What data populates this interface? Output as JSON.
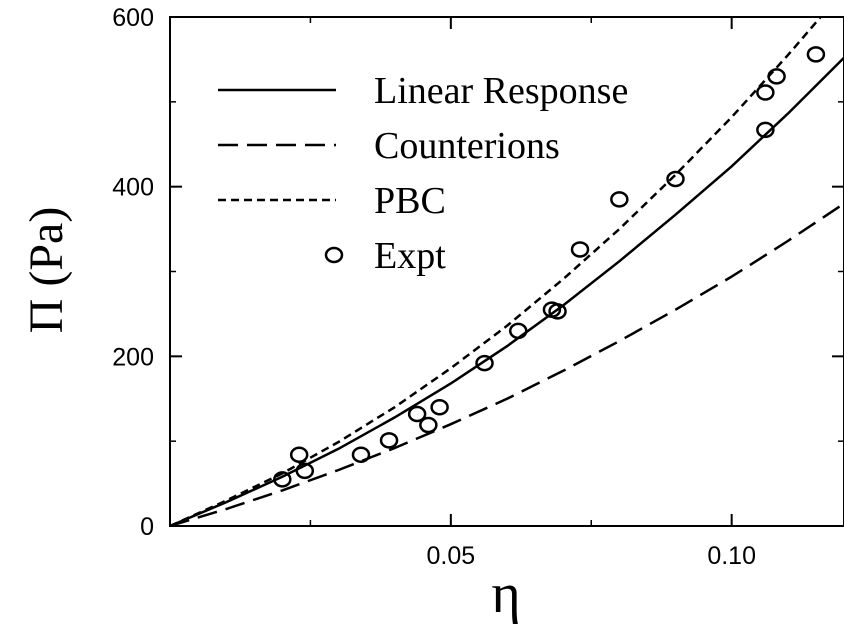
{
  "chart_data": {
    "type": "line",
    "xlabel": "η",
    "ylabel": "Π (Pa)",
    "xlim": [
      0,
      0.12
    ],
    "ylim": [
      0,
      600
    ],
    "xticks": [
      {
        "value": 0.05,
        "label": "0.05"
      },
      {
        "value": 0.1,
        "label": "0.10"
      }
    ],
    "yticks": [
      {
        "value": 0,
        "label": "0"
      },
      {
        "value": 200,
        "label": "200"
      },
      {
        "value": 400,
        "label": "400"
      },
      {
        "value": 600,
        "label": "600"
      }
    ],
    "grid": false,
    "legend_position": "top-left",
    "series": [
      {
        "name": "Linear Response",
        "style": "solid",
        "x": [
          0,
          0.01,
          0.02,
          0.03,
          0.04,
          0.05,
          0.06,
          0.07,
          0.08,
          0.09,
          0.1,
          0.11,
          0.12
        ],
        "y": [
          0,
          28,
          58,
          91,
          128,
          168,
          212,
          260,
          312,
          367,
          424,
          486,
          552
        ]
      },
      {
        "name": "Counterions",
        "style": "dashed",
        "x": [
          0,
          0.01,
          0.02,
          0.03,
          0.04,
          0.05,
          0.06,
          0.07,
          0.08,
          0.09,
          0.1,
          0.11,
          0.12
        ],
        "y": [
          0,
          20,
          42,
          66,
          92,
          120,
          150,
          183,
          218,
          255,
          294,
          336,
          380
        ]
      },
      {
        "name": "PBC",
        "style": "short-dashed",
        "x": [
          0,
          0.01,
          0.02,
          0.03,
          0.04,
          0.05,
          0.06,
          0.07,
          0.08,
          0.09,
          0.1,
          0.11,
          0.12
        ],
        "y": [
          0,
          30,
          62,
          99,
          140,
          186,
          236,
          291,
          350,
          414,
          482,
          555,
          632
        ]
      },
      {
        "name": "Expt",
        "style": "markers",
        "x": [
          0.02,
          0.023,
          0.024,
          0.034,
          0.039,
          0.044,
          0.046,
          0.048,
          0.056,
          0.062,
          0.068,
          0.069,
          0.073,
          0.08,
          0.09,
          0.106,
          0.106,
          0.108,
          0.115
        ],
        "y": [
          55,
          84,
          65,
          84,
          101,
          132,
          119,
          140,
          192,
          230,
          255,
          253,
          326,
          385,
          409,
          467,
          511,
          530,
          556
        ]
      }
    ]
  }
}
